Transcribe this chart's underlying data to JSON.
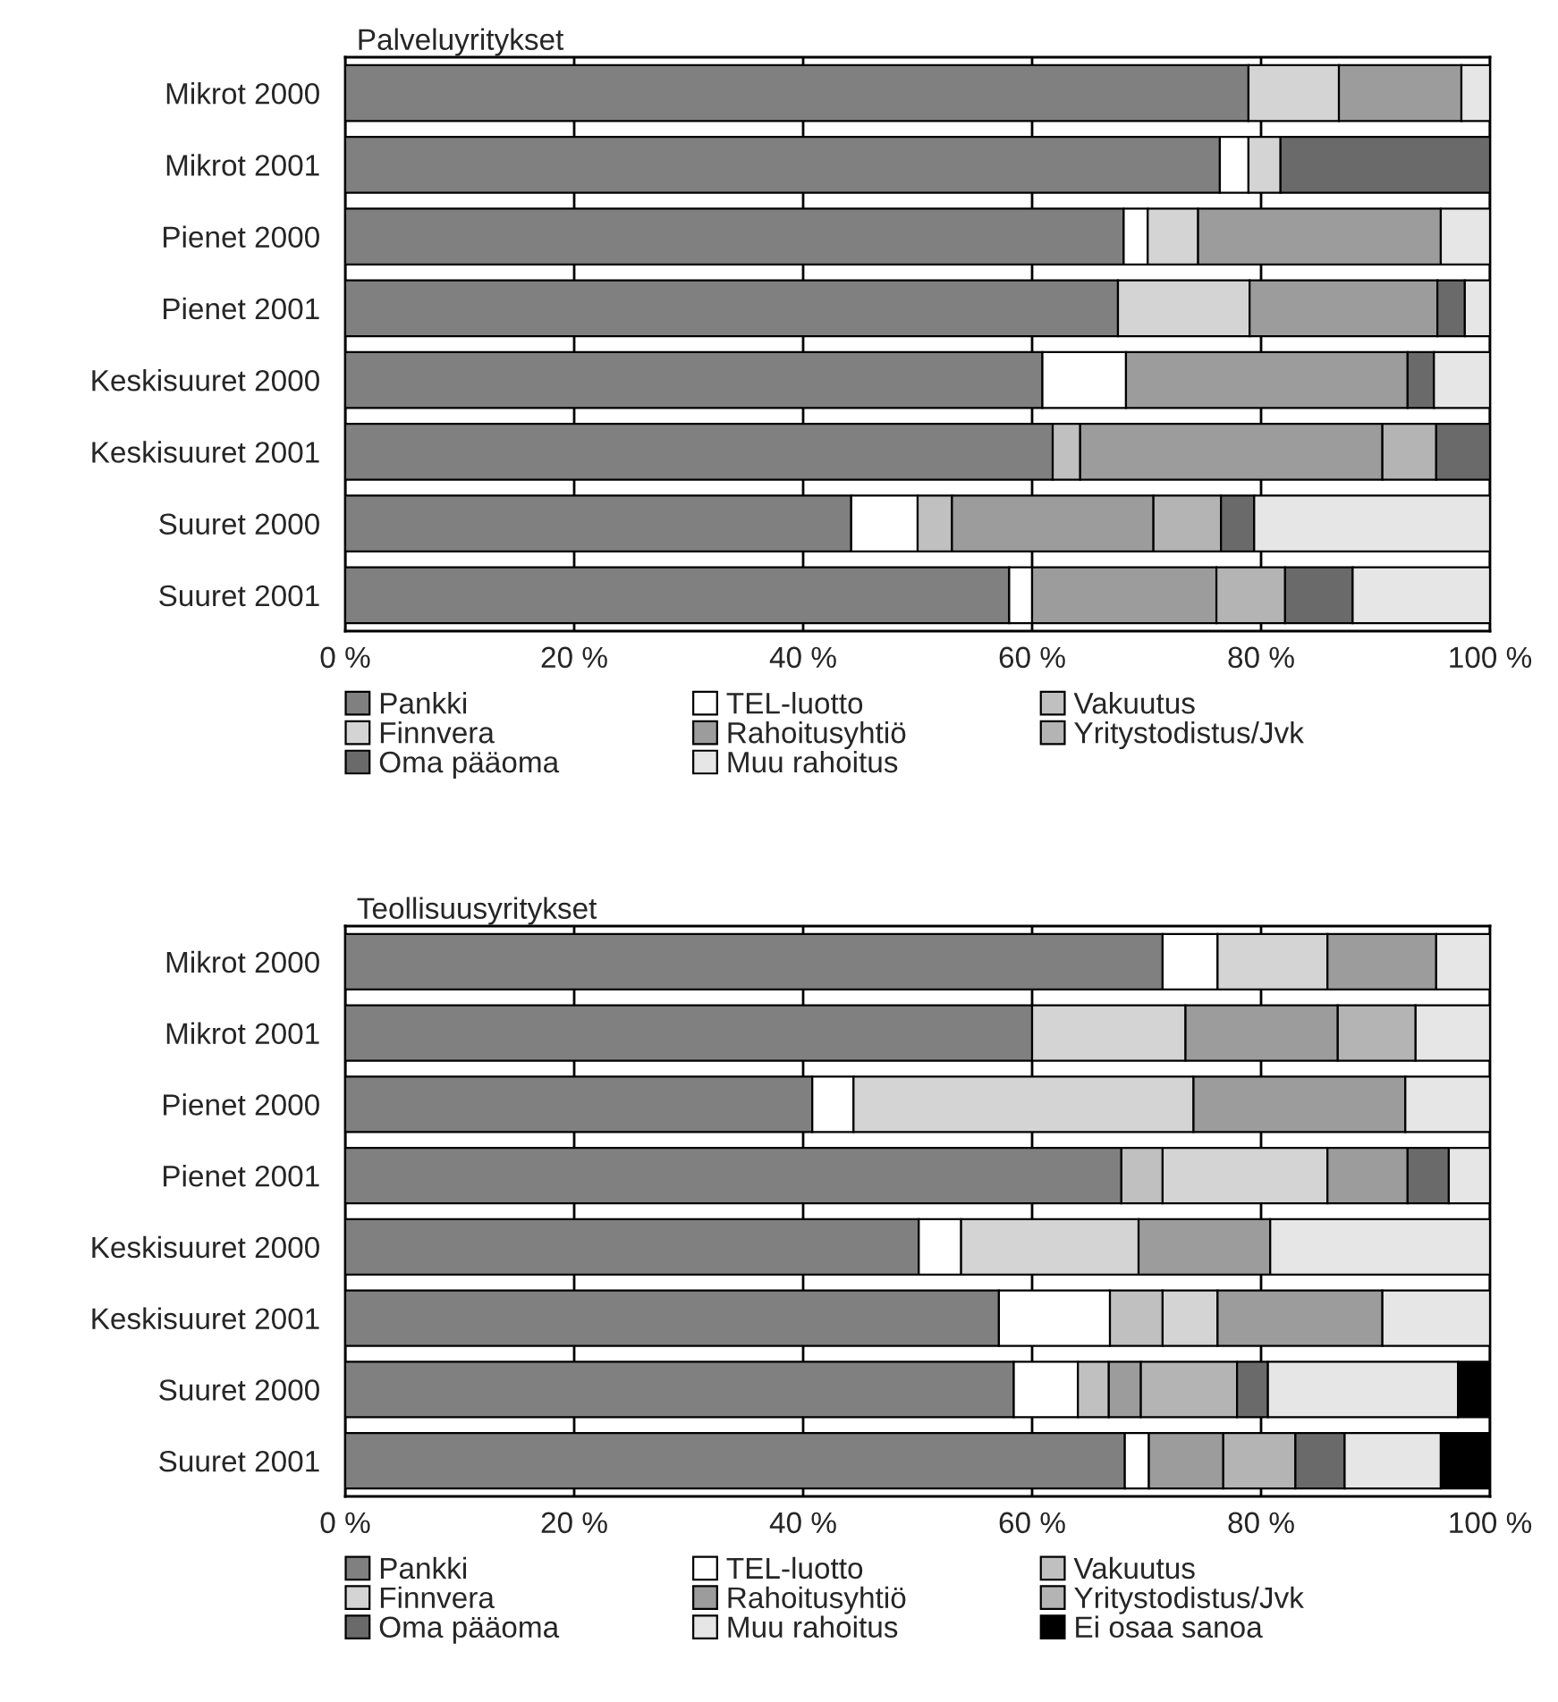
{
  "chart_data": [
    {
      "type": "bar",
      "orientation": "horizontal",
      "stacked": true,
      "title": "Palveluyritykset",
      "categories": [
        "Mikrot 2000",
        "Mikrot 2001",
        "Pienet 2000",
        "Pienet 2001",
        "Keskisuuret 2000",
        "Keskisuuret 2001",
        "Suuret 2000",
        "Suuret 2001"
      ],
      "series": [
        {
          "name": "Pankki",
          "color": "#808080",
          "values": [
            78.9,
            76.4,
            68.0,
            67.5,
            60.9,
            61.8,
            44.2,
            58.0
          ]
        },
        {
          "name": "TEL-luotto",
          "color": "#ffffff",
          "values": [
            null,
            2.5,
            2.1,
            null,
            7.3,
            null,
            5.8,
            2.0
          ]
        },
        {
          "name": "Vakuutus",
          "color": "#c0c0c0",
          "values": [
            null,
            null,
            null,
            null,
            null,
            2.4,
            3.0,
            null
          ]
        },
        {
          "name": "Finnvera",
          "color": "#d4d4d4",
          "values": [
            7.9,
            2.8,
            4.4,
            11.5,
            null,
            null,
            null,
            null
          ]
        },
        {
          "name": "Rahoitusyhtiö",
          "color": "#9c9c9c",
          "values": [
            10.7,
            null,
            21.2,
            16.4,
            24.6,
            26.4,
            17.6,
            16.1
          ]
        },
        {
          "name": "Yritystodistus/Jvk",
          "color": "#b4b4b4",
          "values": [
            null,
            null,
            null,
            null,
            null,
            4.7,
            5.9,
            6.0
          ]
        },
        {
          "name": "Oma pääoma",
          "color": "#6a6a6a",
          "values": [
            null,
            18.3,
            null,
            2.4,
            2.3,
            4.7,
            2.9,
            5.9
          ]
        },
        {
          "name": "Muu rahoitus",
          "color": "#e6e6e6",
          "values": [
            2.5,
            null,
            4.3,
            2.2,
            4.9,
            null,
            20.6,
            12.0
          ]
        }
      ],
      "xlim": [
        0,
        100
      ],
      "xticks": [
        {
          "value": 0,
          "label": "0 %"
        },
        {
          "value": 20,
          "label": "20 %"
        },
        {
          "value": 40,
          "label": "40 %"
        },
        {
          "value": 60,
          "label": "60 %"
        },
        {
          "value": 80,
          "label": "80 %"
        },
        {
          "value": 100,
          "label": "100 %"
        }
      ],
      "grid": "x",
      "legend": "bottom"
    },
    {
      "type": "bar",
      "orientation": "horizontal",
      "stacked": true,
      "title": "Teollisuusyritykset",
      "categories": [
        "Mikrot 2000",
        "Mikrot 2001",
        "Pienet 2000",
        "Pienet 2001",
        "Keskisuuret 2000",
        "Keskisuuret 2001",
        "Suuret 2000",
        "Suuret 2001"
      ],
      "series": [
        {
          "name": "Pankki",
          "color": "#808080",
          "values": [
            71.4,
            60.0,
            40.8,
            67.8,
            50.1,
            57.1,
            58.4,
            68.1
          ]
        },
        {
          "name": "TEL-luotto",
          "color": "#ffffff",
          "values": [
            4.8,
            null,
            3.6,
            null,
            3.7,
            9.7,
            5.6,
            2.1
          ]
        },
        {
          "name": "Vakuutus",
          "color": "#c0c0c0",
          "values": [
            null,
            null,
            null,
            3.6,
            null,
            4.6,
            2.7,
            null
          ]
        },
        {
          "name": "Finnvera",
          "color": "#d4d4d4",
          "values": [
            9.6,
            13.4,
            29.7,
            14.4,
            15.5,
            4.8,
            null,
            null
          ]
        },
        {
          "name": "Rahoitusyhtiö",
          "color": "#9c9c9c",
          "values": [
            9.5,
            13.3,
            18.5,
            7.0,
            11.5,
            14.4,
            2.8,
            6.5
          ]
        },
        {
          "name": "Yritystodistus/Jvk",
          "color": "#b4b4b4",
          "values": [
            null,
            6.8,
            null,
            null,
            null,
            null,
            8.4,
            6.3
          ]
        },
        {
          "name": "Oma pääoma",
          "color": "#6a6a6a",
          "values": [
            null,
            null,
            null,
            3.6,
            null,
            null,
            2.7,
            4.3
          ]
        },
        {
          "name": "Muu rahoitus",
          "color": "#e6e6e6",
          "values": [
            4.7,
            6.5,
            7.4,
            3.6,
            19.2,
            9.4,
            16.6,
            8.4
          ]
        },
        {
          "name": "Ei osaa sanoa",
          "color": "#000000",
          "values": [
            null,
            null,
            null,
            null,
            null,
            null,
            2.8,
            4.3
          ]
        }
      ],
      "xlim": [
        0,
        100
      ],
      "xticks": [
        {
          "value": 0,
          "label": "0 %"
        },
        {
          "value": 20,
          "label": "20 %"
        },
        {
          "value": 40,
          "label": "40 %"
        },
        {
          "value": 60,
          "label": "60 %"
        },
        {
          "value": 80,
          "label": "80 %"
        },
        {
          "value": 100,
          "label": "100 %"
        }
      ],
      "grid": "x",
      "legend": "bottom"
    }
  ]
}
